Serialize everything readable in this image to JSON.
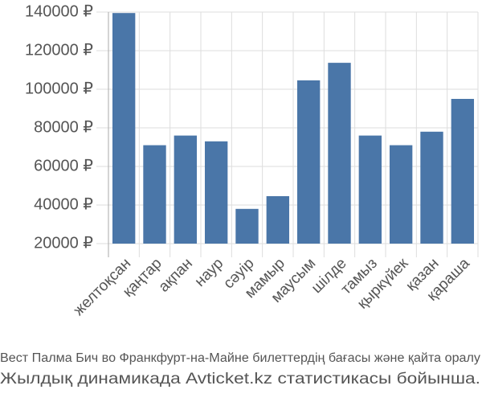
{
  "chart_data": {
    "type": "bar",
    "title": "Вест Палма Бич во Франкфурт-на-Майне билеттердің бағасы және қайта оралу",
    "subtitle": "Жылдық динамикада Avticket.kz статистикасы бойынша.",
    "categories": [
      "желтоқсан",
      "қаңтар",
      "ақпан",
      "наур",
      "сәуір",
      "мамыр",
      "маусым",
      "шілде",
      "тамыз",
      "қыркүйек",
      "қазан",
      "қараша"
    ],
    "values": [
      139500,
      71000,
      76000,
      73000,
      38000,
      44600,
      104600,
      113700,
      76000,
      71000,
      78000,
      95000
    ],
    "color": "#4a76a8",
    "ylim": [
      20000,
      140000
    ],
    "yticks": [
      {
        "value": 20000,
        "label": "20000 ₽"
      },
      {
        "value": 40000,
        "label": "40000 ₽"
      },
      {
        "value": 60000,
        "label": "60000 ₽"
      },
      {
        "value": 80000,
        "label": "80000 ₽"
      },
      {
        "value": 100000,
        "label": "100000 ₽"
      },
      {
        "value": 120000,
        "label": "120000 ₽"
      },
      {
        "value": 140000,
        "label": "140000 ₽"
      }
    ],
    "grid": true
  }
}
